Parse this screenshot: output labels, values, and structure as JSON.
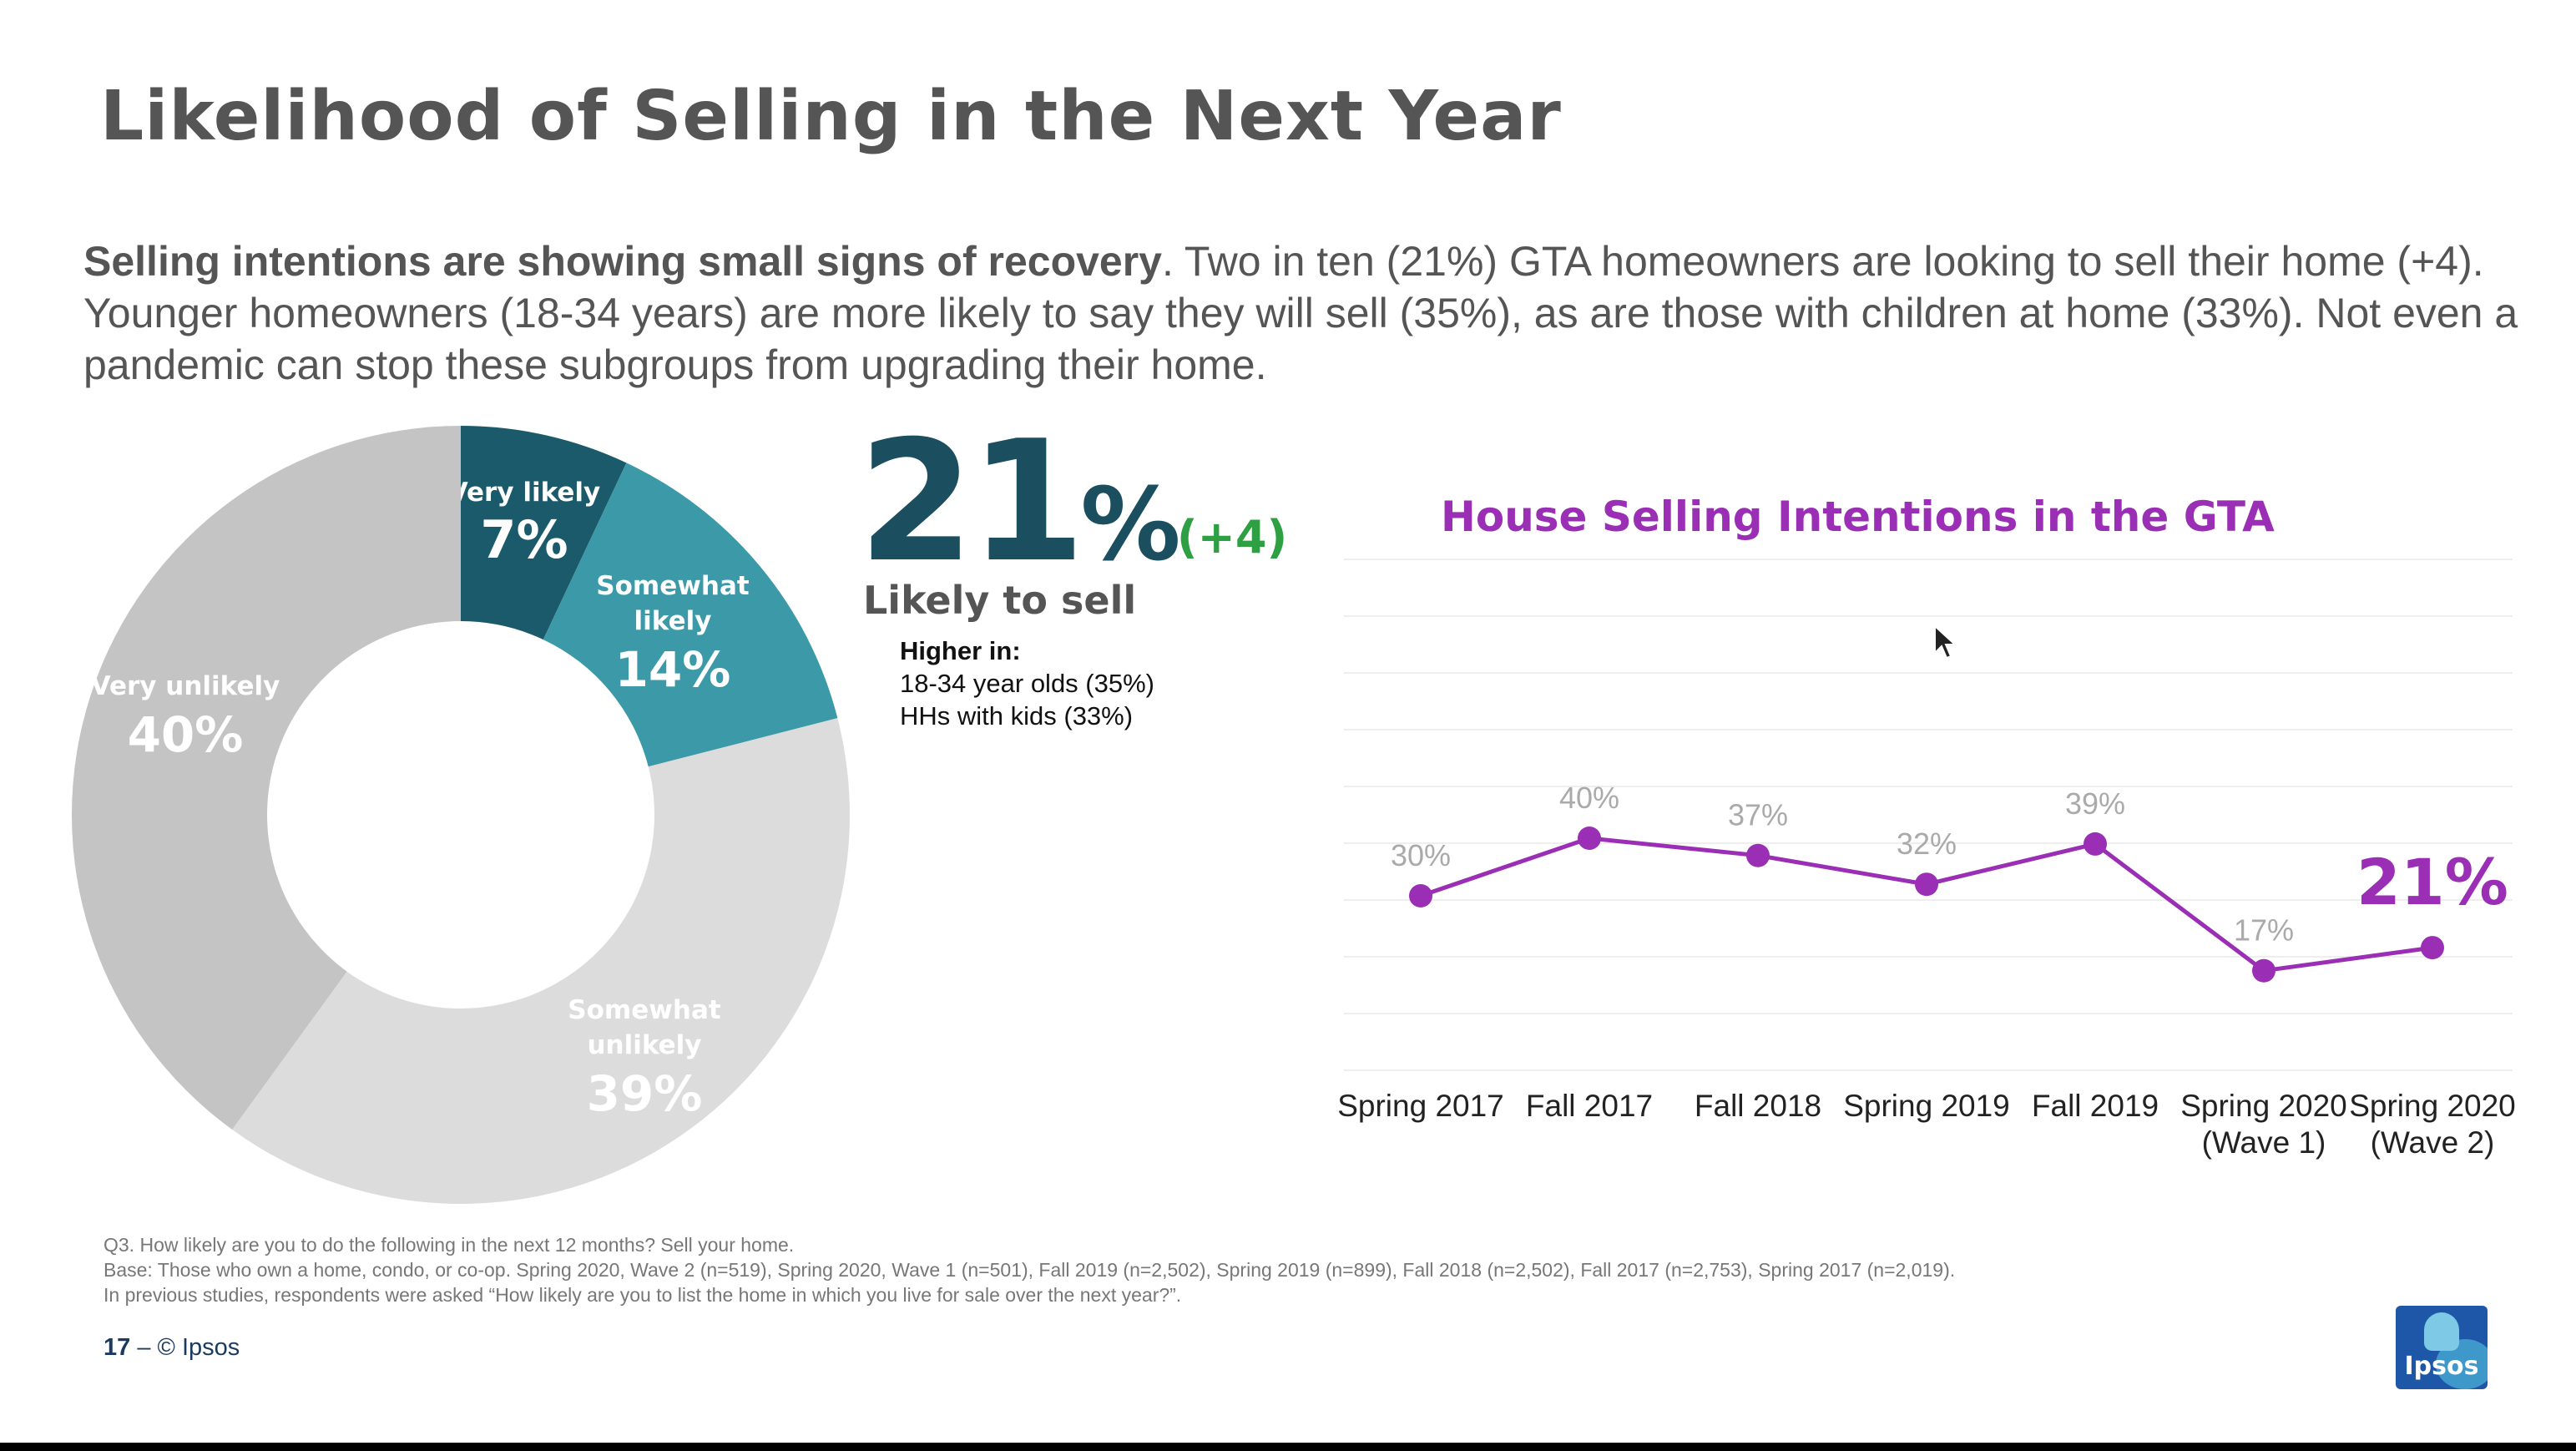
{
  "slide": {
    "title": "Likelihood of Selling in the Next Year",
    "lead_bold": "Selling intentions are showing small signs of recovery",
    "lead_rest": ". Two in ten (21%) GTA homeowners are looking to sell their home (+4). Younger homeowners (18-34 years) are more likely to say they will sell (35%), as are those with children at home (33%). Not even a pandemic can stop these subgroups from upgrading their home."
  },
  "callout": {
    "number": "21",
    "symbol": "%",
    "change": "(+4)",
    "label": "Likely to sell",
    "higher_title": "Higher in:",
    "higher_items": [
      "18-34 year olds (35%)",
      "HHs with kids (33%)"
    ]
  },
  "chart_data": [
    {
      "type": "pie",
      "variant": "donut",
      "slices": [
        {
          "label_lines": [
            "Very likely"
          ],
          "value": 7,
          "display": "7%",
          "color": "#1b5a6a"
        },
        {
          "label_lines": [
            "Somewhat",
            "likely"
          ],
          "value": 14,
          "display": "14%",
          "color": "#3c9aa8"
        },
        {
          "label_lines": [
            "Somewhat",
            "unlikely"
          ],
          "value": 39,
          "display": "39%",
          "color": "#dcdcdc"
        },
        {
          "label_lines": [
            "Very unlikely"
          ],
          "value": 40,
          "display": "40%",
          "color": "#c4c4c4"
        }
      ]
    },
    {
      "type": "line",
      "title": "House Selling Intentions in the GTA",
      "categories": [
        [
          "Spring 2017"
        ],
        [
          "Fall 2017"
        ],
        [
          "Fall 2018"
        ],
        [
          "Spring 2019"
        ],
        [
          "Fall 2019"
        ],
        [
          "Spring 2020",
          "(Wave 1)"
        ],
        [
          "Spring 2020",
          "(Wave 2)"
        ]
      ],
      "values": [
        30,
        40,
        37,
        32,
        39,
        17,
        21
      ],
      "point_labels": [
        "30%",
        "40%",
        "37%",
        "32%",
        "39%",
        "17%",
        "21%"
      ],
      "color": "#9a2eb4",
      "grid": true
    }
  ],
  "footer": {
    "q": "Q3. How likely are you to do the following in the next 12 months? Sell your home.",
    "base": "Base: Those who own a home, condo, or co-op. Spring 2020, Wave 2 (n=519), Spring 2020, Wave 1 (n=501), Fall 2019 (n=2,502), Spring 2019 (n=899), Fall 2018 (n=2,502), Fall 2017 (n=2,753), Spring 2017 (n=2,019).",
    "note": "In previous studies, respondents were asked “How likely are you to list the home in which you live for sale over the next year?”.",
    "page": "17",
    "page_sep": " – ",
    "copyright": "© Ipsos",
    "logo_text": "Ipsos"
  }
}
